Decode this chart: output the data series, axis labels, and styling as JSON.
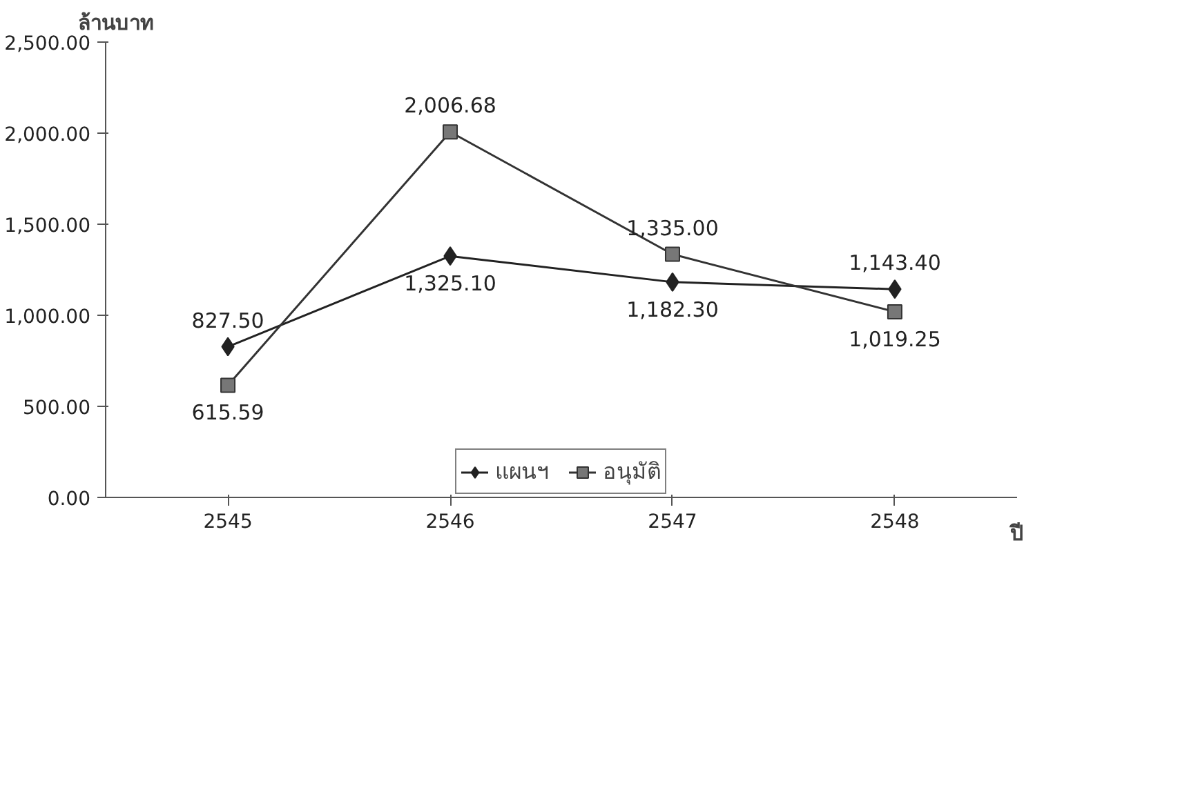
{
  "chart_data": {
    "type": "line",
    "ylabel": "ล้านบาท",
    "xlabel": "ปี",
    "categories": [
      "2545",
      "2546",
      "2547",
      "2548"
    ],
    "series": [
      {
        "name": "แผนฯ",
        "color": "#222222",
        "marker": "diamond",
        "values": [
          827.5,
          1325.1,
          1182.3,
          1143.4
        ],
        "value_labels": [
          "827.50",
          "1,325.10",
          "1,182.30",
          "1,143.40"
        ]
      },
      {
        "name": "อนุมัติ",
        "color": "#333333",
        "marker": "square",
        "values": [
          615.59,
          2006.68,
          1335.0,
          1019.25
        ],
        "value_labels": [
          "615.59",
          "2,006.68",
          "1,335.00",
          "1,019.25"
        ]
      }
    ],
    "ylim": [
      0,
      2500
    ],
    "yticks": [
      {
        "value": 0,
        "label": "0.00"
      },
      {
        "value": 500,
        "label": "500.00"
      },
      {
        "value": 1000,
        "label": "1,000.00"
      },
      {
        "value": 1500,
        "label": "1,500.00"
      },
      {
        "value": 2000,
        "label": "2,000.00"
      },
      {
        "value": 2500,
        "label": "2,500.00"
      }
    ],
    "grid": false,
    "legend": "bottom",
    "line_style": "solid"
  }
}
